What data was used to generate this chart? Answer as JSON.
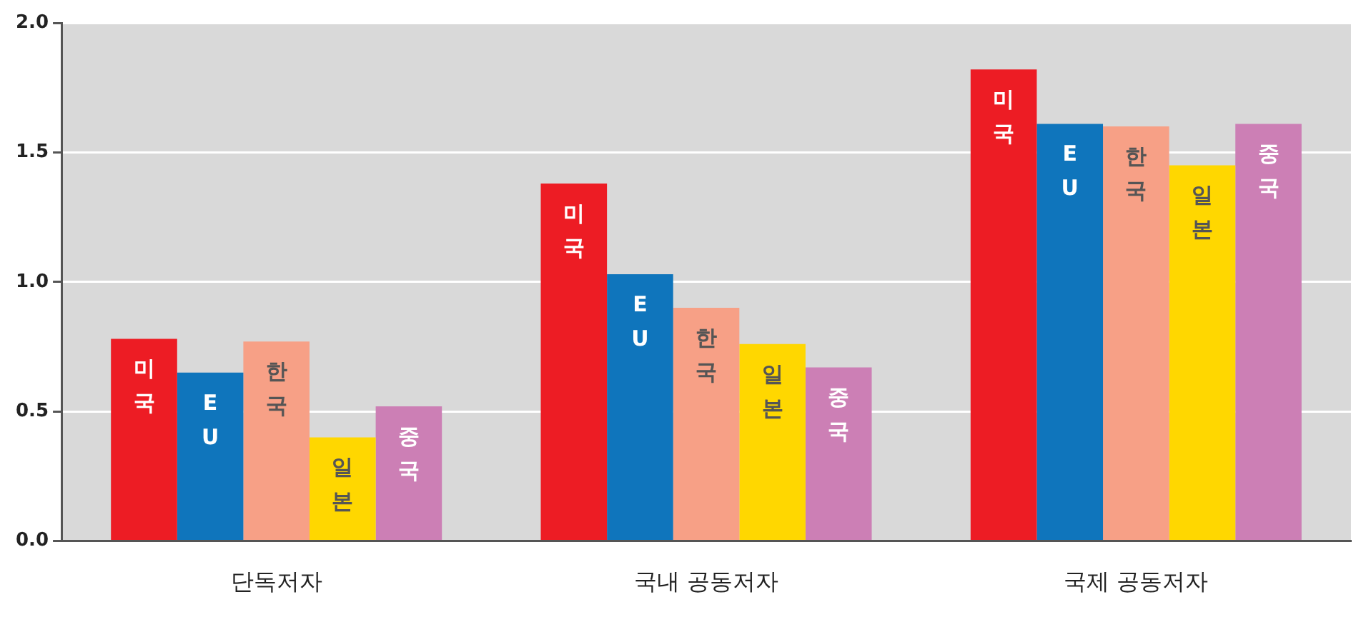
{
  "chart_data": {
    "type": "bar",
    "categories": [
      "단독저자",
      "국내 공동저자",
      "국제 공동저자"
    ],
    "series": [
      {
        "name": "미국",
        "color": "#ed1c24",
        "values": [
          0.78,
          1.38,
          1.82
        ]
      },
      {
        "name": "EU",
        "color": "#0f75bc",
        "values": [
          0.65,
          1.03,
          1.61
        ]
      },
      {
        "name": "한국",
        "color": "#f7a086",
        "values": [
          0.77,
          0.9,
          1.6
        ]
      },
      {
        "name": "일본",
        "color": "#ffd700",
        "values": [
          0.4,
          0.76,
          1.45
        ]
      },
      {
        "name": "중국",
        "color": "#cc7fb5",
        "values": [
          0.52,
          0.67,
          1.61
        ]
      }
    ],
    "ylim": [
      0,
      2
    ],
    "yticks": [
      {
        "value": 0,
        "label": "0.0"
      },
      {
        "value": 0.5,
        "label": "0.5"
      },
      {
        "value": 1,
        "label": "1.0"
      },
      {
        "value": 1.5,
        "label": "1.5"
      },
      {
        "value": 2,
        "label": "2.0"
      }
    ],
    "grid": "y",
    "legend": false
  }
}
